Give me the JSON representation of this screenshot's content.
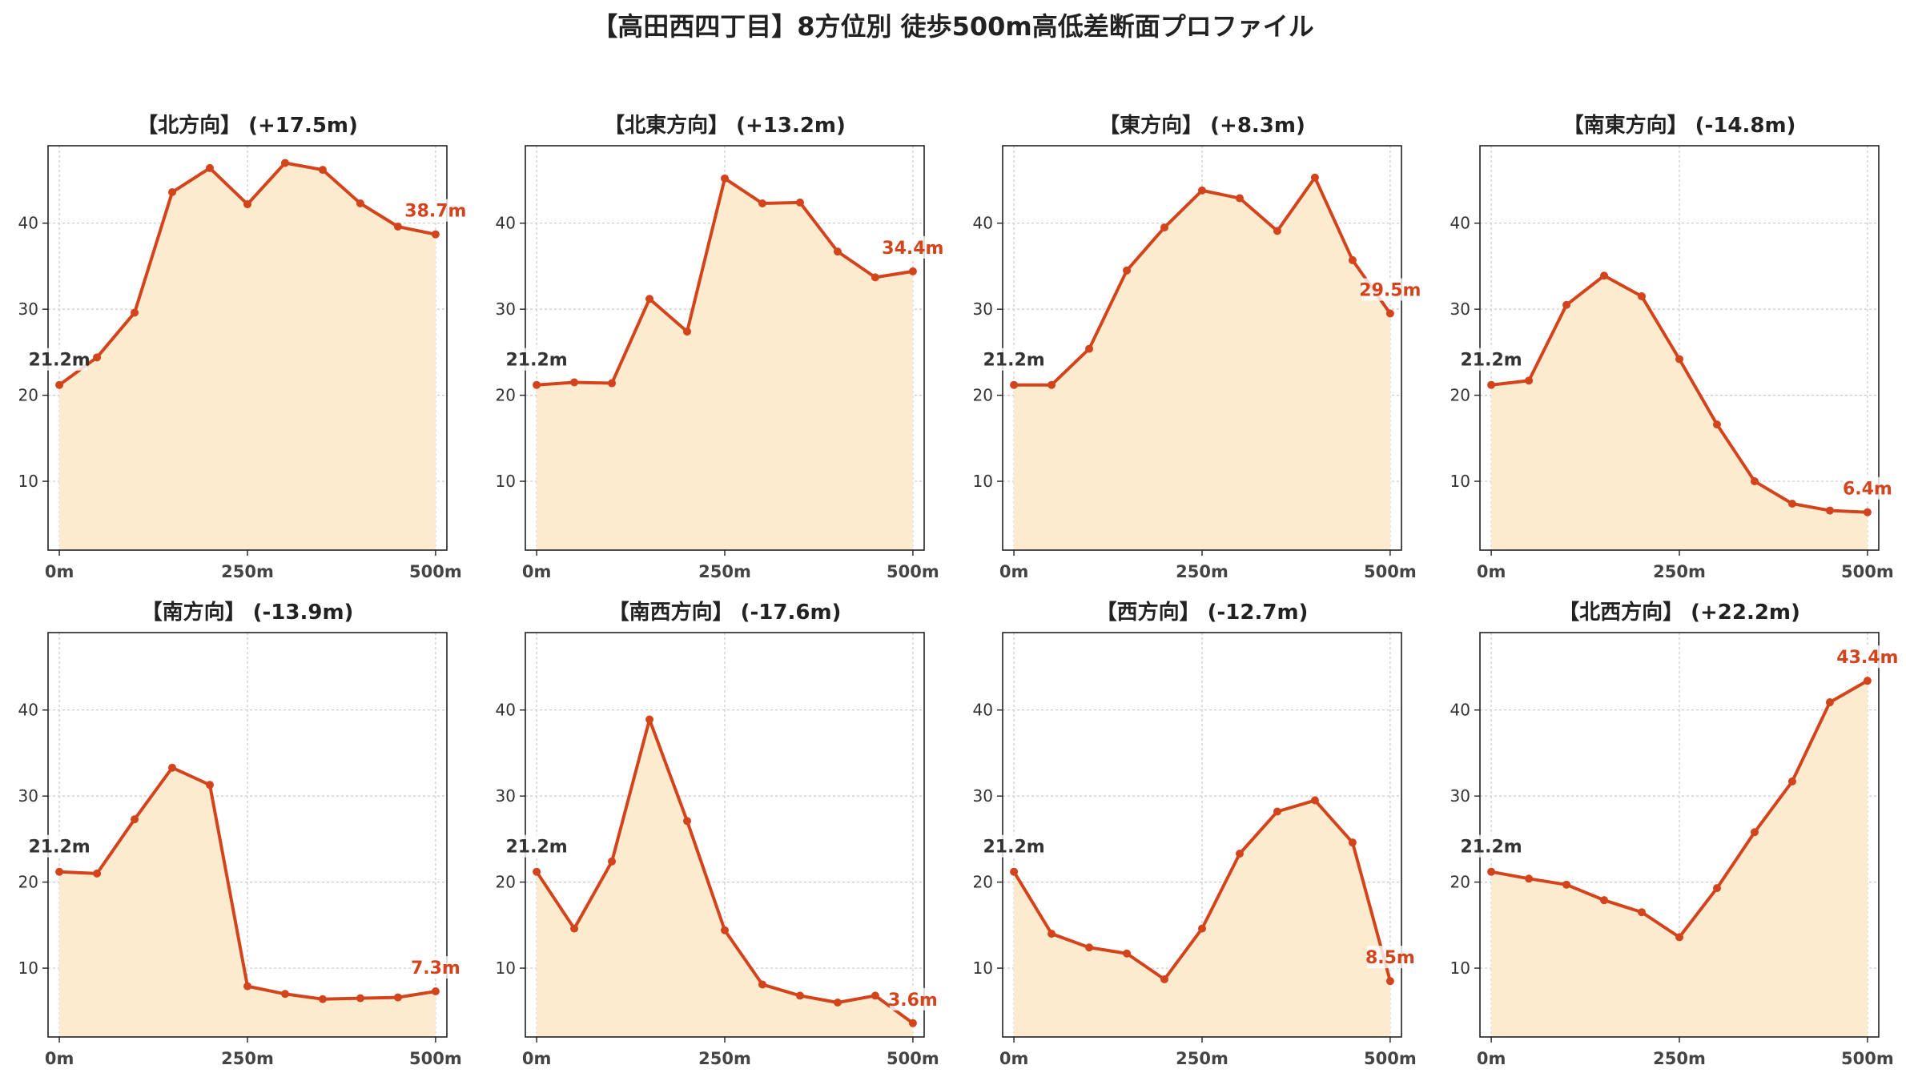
{
  "title": "【高田西四丁目】8方位別 徒歩500m高低差断面プロファイル",
  "colors": {
    "line": "#d4441c",
    "fill": "#fdebd0",
    "grid": "#c8c8c8",
    "axis": "#222222",
    "start_label": "#333333",
    "end_label": "#d4441c"
  },
  "chart_data": [
    {
      "type": "area",
      "title": "【北方向】 (+17.5m)",
      "x": [
        0,
        50,
        100,
        150,
        200,
        250,
        300,
        350,
        400,
        450,
        500
      ],
      "values": [
        21.2,
        24.4,
        29.6,
        43.6,
        46.4,
        42.2,
        47.0,
        46.2,
        42.3,
        39.6,
        38.7
      ],
      "start_label": "21.2m",
      "end_label": "38.7m",
      "xticks": [
        "0m",
        "250m",
        "500m"
      ],
      "yticks": [
        10,
        20,
        30,
        40
      ],
      "ylim": [
        2,
        49
      ],
      "xlim": [
        -15,
        515
      ],
      "grid": true
    },
    {
      "type": "area",
      "title": "【北東方向】 (+13.2m)",
      "x": [
        0,
        50,
        100,
        150,
        200,
        250,
        300,
        350,
        400,
        450,
        500
      ],
      "values": [
        21.2,
        21.5,
        21.4,
        31.2,
        27.4,
        45.2,
        42.3,
        42.4,
        36.7,
        33.7,
        34.4
      ],
      "start_label": "21.2m",
      "end_label": "34.4m",
      "xticks": [
        "0m",
        "250m",
        "500m"
      ],
      "yticks": [
        10,
        20,
        30,
        40
      ],
      "ylim": [
        2,
        49
      ],
      "xlim": [
        -15,
        515
      ],
      "grid": true
    },
    {
      "type": "area",
      "title": "【東方向】 (+8.3m)",
      "x": [
        0,
        50,
        100,
        150,
        200,
        250,
        300,
        350,
        400,
        450,
        500
      ],
      "values": [
        21.2,
        21.2,
        25.4,
        34.5,
        39.5,
        43.8,
        42.9,
        39.1,
        45.3,
        35.7,
        29.5
      ],
      "start_label": "21.2m",
      "end_label": "29.5m",
      "xticks": [
        "0m",
        "250m",
        "500m"
      ],
      "yticks": [
        10,
        20,
        30,
        40
      ],
      "ylim": [
        2,
        49
      ],
      "xlim": [
        -15,
        515
      ],
      "grid": true
    },
    {
      "type": "area",
      "title": "【南東方向】 (-14.8m)",
      "x": [
        0,
        50,
        100,
        150,
        200,
        250,
        300,
        350,
        400,
        450,
        500
      ],
      "values": [
        21.2,
        21.7,
        30.5,
        33.9,
        31.5,
        24.2,
        16.6,
        10.0,
        7.4,
        6.6,
        6.4
      ],
      "start_label": "21.2m",
      "end_label": "6.4m",
      "xticks": [
        "0m",
        "250m",
        "500m"
      ],
      "yticks": [
        10,
        20,
        30,
        40
      ],
      "ylim": [
        2,
        49
      ],
      "xlim": [
        -15,
        515
      ],
      "grid": true
    },
    {
      "type": "area",
      "title": "【南方向】 (-13.9m)",
      "x": [
        0,
        50,
        100,
        150,
        200,
        250,
        300,
        350,
        400,
        450,
        500
      ],
      "values": [
        21.2,
        21.0,
        27.3,
        33.3,
        31.3,
        7.9,
        7.0,
        6.4,
        6.5,
        6.6,
        7.3
      ],
      "start_label": "21.2m",
      "end_label": "7.3m",
      "xticks": [
        "0m",
        "250m",
        "500m"
      ],
      "yticks": [
        10,
        20,
        30,
        40
      ],
      "ylim": [
        2,
        49
      ],
      "xlim": [
        -15,
        515
      ],
      "grid": true
    },
    {
      "type": "area",
      "title": "【南西方向】 (-17.6m)",
      "x": [
        0,
        50,
        100,
        150,
        200,
        250,
        300,
        350,
        400,
        450,
        500
      ],
      "values": [
        21.2,
        14.6,
        22.4,
        38.9,
        27.1,
        14.4,
        8.1,
        6.8,
        6.0,
        6.8,
        3.6
      ],
      "start_label": "21.2m",
      "end_label": "3.6m",
      "xticks": [
        "0m",
        "250m",
        "500m"
      ],
      "yticks": [
        10,
        20,
        30,
        40
      ],
      "ylim": [
        2,
        49
      ],
      "xlim": [
        -15,
        515
      ],
      "grid": true
    },
    {
      "type": "area",
      "title": "【西方向】 (-12.7m)",
      "x": [
        0,
        50,
        100,
        150,
        200,
        250,
        300,
        350,
        400,
        450,
        500
      ],
      "values": [
        21.2,
        14.0,
        12.4,
        11.7,
        8.7,
        14.6,
        23.3,
        28.2,
        29.5,
        24.6,
        8.5
      ],
      "start_label": "21.2m",
      "end_label": "8.5m",
      "xticks": [
        "0m",
        "250m",
        "500m"
      ],
      "yticks": [
        10,
        20,
        30,
        40
      ],
      "ylim": [
        2,
        49
      ],
      "xlim": [
        -15,
        515
      ],
      "grid": true
    },
    {
      "type": "area",
      "title": "【北西方向】 (+22.2m)",
      "x": [
        0,
        50,
        100,
        150,
        200,
        250,
        300,
        350,
        400,
        450,
        500
      ],
      "values": [
        21.2,
        20.4,
        19.7,
        17.9,
        16.5,
        13.6,
        19.3,
        25.8,
        31.7,
        40.9,
        43.4
      ],
      "start_label": "21.2m",
      "end_label": "43.4m",
      "xticks": [
        "0m",
        "250m",
        "500m"
      ],
      "yticks": [
        10,
        20,
        30,
        40
      ],
      "ylim": [
        2,
        49
      ],
      "xlim": [
        -15,
        515
      ],
      "grid": true
    }
  ]
}
